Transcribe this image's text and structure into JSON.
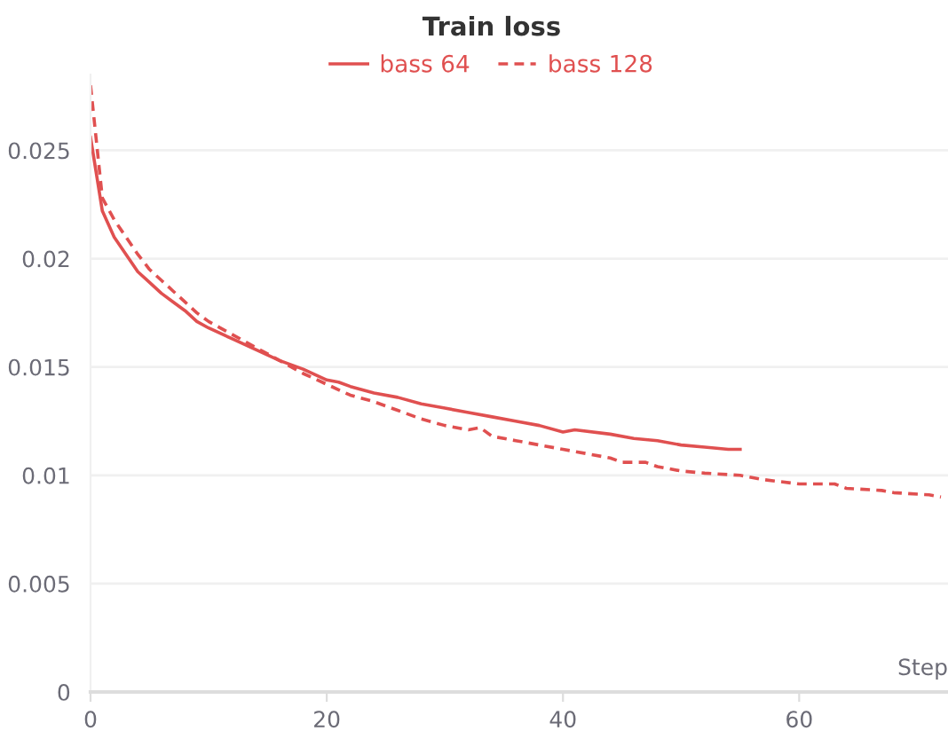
{
  "chart_data": {
    "type": "line",
    "title": "Train loss",
    "xlabel": "Step",
    "xlim": [
      0,
      72.6
    ],
    "xticks": [
      0,
      20,
      40,
      60
    ],
    "ylim": [
      0,
      0.0285
    ],
    "yticks": [
      0,
      0.005,
      0.01,
      0.015,
      0.02,
      0.025
    ],
    "grid": "y",
    "legend": "top",
    "series": [
      {
        "name": "bass 64",
        "color": "#e05050",
        "line_style": "solid",
        "x": [
          0,
          1,
          2,
          3,
          4,
          5,
          6,
          7,
          8,
          9,
          10,
          12,
          14,
          16,
          18,
          20,
          21,
          22,
          24,
          26,
          28,
          30,
          32,
          34,
          36,
          38,
          40,
          41,
          44,
          46,
          48,
          50,
          52,
          54,
          55
        ],
        "values": [
          0.0256,
          0.0222,
          0.021,
          0.0202,
          0.0194,
          0.0189,
          0.0184,
          0.018,
          0.0176,
          0.0171,
          0.0168,
          0.0163,
          0.0158,
          0.0153,
          0.0149,
          0.0144,
          0.0143,
          0.0141,
          0.0138,
          0.0136,
          0.0133,
          0.0131,
          0.0129,
          0.0127,
          0.0125,
          0.0123,
          0.012,
          0.0121,
          0.0119,
          0.0117,
          0.0116,
          0.0114,
          0.0113,
          0.0112,
          0.0112
        ]
      },
      {
        "name": "bass 128",
        "color": "#e05050",
        "line_style": "dashed",
        "x": [
          0,
          1,
          2,
          3,
          4,
          5,
          6,
          7,
          8,
          9,
          10,
          12,
          14,
          16,
          18,
          20,
          22,
          24,
          26,
          28,
          30,
          32,
          33,
          34,
          36,
          38,
          40,
          42,
          44,
          45,
          47,
          48,
          50,
          52,
          55,
          57,
          60,
          63,
          64,
          67,
          68,
          71,
          72
        ],
        "values": [
          0.028,
          0.0228,
          0.0218,
          0.021,
          0.0202,
          0.0195,
          0.019,
          0.0185,
          0.018,
          0.0175,
          0.0171,
          0.0165,
          0.0159,
          0.0153,
          0.0147,
          0.0142,
          0.0137,
          0.0134,
          0.013,
          0.0126,
          0.0123,
          0.0121,
          0.0122,
          0.0118,
          0.0116,
          0.0114,
          0.0112,
          0.011,
          0.0108,
          0.0106,
          0.0106,
          0.0104,
          0.0102,
          0.0101,
          0.01,
          0.0098,
          0.0096,
          0.0096,
          0.0094,
          0.0093,
          0.0092,
          0.0091,
          0.009
        ]
      }
    ]
  }
}
